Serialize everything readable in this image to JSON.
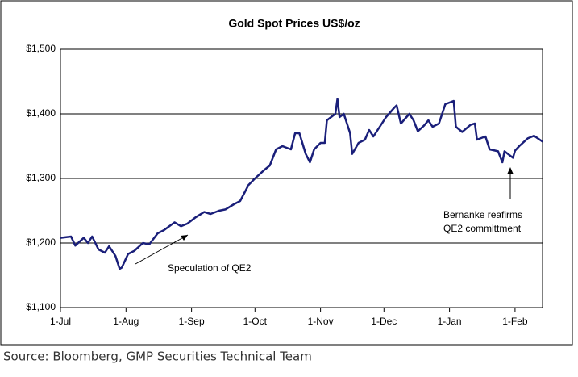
{
  "chart_data": {
    "type": "line",
    "title": "Gold Spot Prices US$/oz",
    "x": [
      "1-Jul",
      "6-Jul",
      "8-Jul",
      "12-Jul",
      "14-Jul",
      "16-Jul",
      "19-Jul",
      "22-Jul",
      "24-Jul",
      "27-Jul",
      "29-Jul",
      "30-Jul",
      "2-Aug",
      "5-Aug",
      "9-Aug",
      "12-Aug",
      "16-Aug",
      "19-Aug",
      "24-Aug",
      "27-Aug",
      "30-Aug",
      "3-Sep",
      "7-Sep",
      "10-Sep",
      "14-Sep",
      "17-Sep",
      "21-Sep",
      "24-Sep",
      "28-Sep",
      "1-Oct",
      "5-Oct",
      "8-Oct",
      "11-Oct",
      "14-Oct",
      "18-Oct",
      "20-Oct",
      "22-Oct",
      "25-Oct",
      "27-Oct",
      "29-Oct",
      "1-Nov",
      "3-Nov",
      "4-Nov",
      "8-Nov",
      "9-Nov",
      "10-Nov",
      "12-Nov",
      "15-Nov",
      "16-Nov",
      "19-Nov",
      "22-Nov",
      "24-Nov",
      "26-Nov",
      "30-Nov",
      "2-Dec",
      "6-Dec",
      "7-Dec",
      "9-Dec",
      "13-Dec",
      "15-Dec",
      "17-Dec",
      "20-Dec",
      "22-Dec",
      "24-Dec",
      "27-Dec",
      "30-Dec",
      "3-Jan",
      "4-Jan",
      "7-Jan",
      "11-Jan",
      "13-Jan",
      "14-Jan",
      "18-Jan",
      "20-Jan",
      "24-Jan",
      "26-Jan",
      "27-Jan",
      "31-Jan",
      "1-Feb",
      "3-Feb",
      "7-Feb",
      "10-Feb",
      "14-Feb"
    ],
    "series": [
      {
        "name": "Gold",
        "color": "#1a1f7a",
        "values": [
          1208,
          1210,
          1196,
          1208,
          1200,
          1210,
          1190,
          1185,
          1195,
          1180,
          1160,
          1162,
          1183,
          1188,
          1200,
          1198,
          1215,
          1220,
          1232,
          1226,
          1230,
          1240,
          1248,
          1245,
          1250,
          1252,
          1260,
          1265,
          1290,
          1300,
          1312,
          1320,
          1345,
          1350,
          1345,
          1370,
          1370,
          1338,
          1325,
          1345,
          1355,
          1355,
          1390,
          1400,
          1423,
          1395,
          1400,
          1370,
          1338,
          1355,
          1360,
          1375,
          1365,
          1385,
          1395,
          1410,
          1413,
          1385,
          1400,
          1390,
          1373,
          1382,
          1390,
          1380,
          1385,
          1415,
          1420,
          1380,
          1372,
          1383,
          1385,
          1360,
          1365,
          1345,
          1342,
          1325,
          1342,
          1332,
          1343,
          1350,
          1362,
          1366,
          1357
        ]
      }
    ],
    "xlim": [
      "1-Jul",
      "14-Feb"
    ],
    "xticks": [
      "1-Jul",
      "1-Aug",
      "1-Sep",
      "1-Oct",
      "1-Nov",
      "1-Dec",
      "1-Jan",
      "1-Feb"
    ],
    "ylim": [
      1100,
      1500
    ],
    "yticks": [
      {
        "value": 1100,
        "label": "$1,100"
      },
      {
        "value": 1200,
        "label": "$1,200"
      },
      {
        "value": 1300,
        "label": "$1,300"
      },
      {
        "value": 1400,
        "label": "$1,400"
      },
      {
        "value": 1500,
        "label": "$1,500"
      }
    ],
    "grid": true,
    "annotations": [
      "Speculation of QE2",
      "Bernanke reafirms",
      "QE2 committment"
    ],
    "source": "Source: Bloomberg, GMP Securities Technical Team"
  }
}
